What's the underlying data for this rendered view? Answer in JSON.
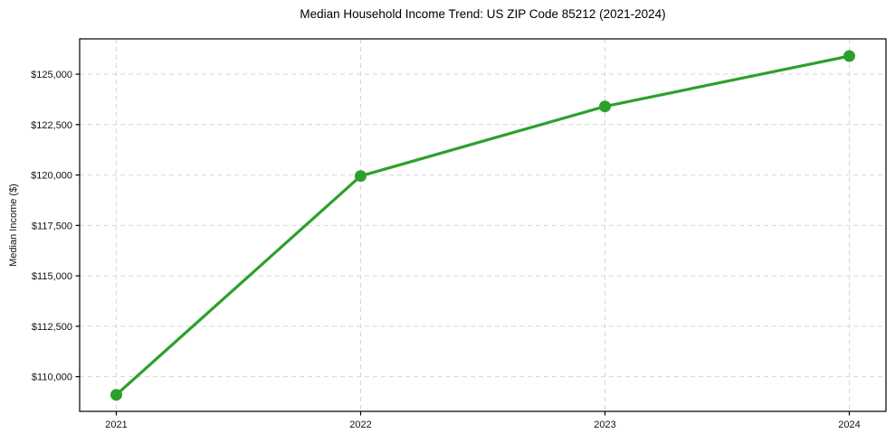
{
  "chart_data": {
    "type": "line",
    "title": "Median Household Income Trend: US ZIP Code 85212 (2021-2024)",
    "xlabel": "",
    "ylabel": "Median Income ($)",
    "categories": [
      "2021",
      "2022",
      "2023",
      "2024"
    ],
    "series": [
      {
        "name": "Median Household Income",
        "values": [
          109100,
          119950,
          123400,
          125900
        ]
      }
    ],
    "ytick_values": [
      110000,
      112500,
      115000,
      117500,
      120000,
      122500,
      125000
    ],
    "ytick_labels": [
      "$110,000",
      "$112,500",
      "$115,000",
      "$117,500",
      "$120,000",
      "$122,500",
      "$125,000"
    ],
    "ylim": [
      108280,
      126750
    ],
    "grid": true,
    "grid_style": "dashed",
    "legend": "none",
    "colors": {
      "line": "#2ca02c",
      "marker": "#2ca02c",
      "grid": "#d6d6d6",
      "spine": "#000000",
      "text": "#111111",
      "background": "#ffffff"
    }
  }
}
